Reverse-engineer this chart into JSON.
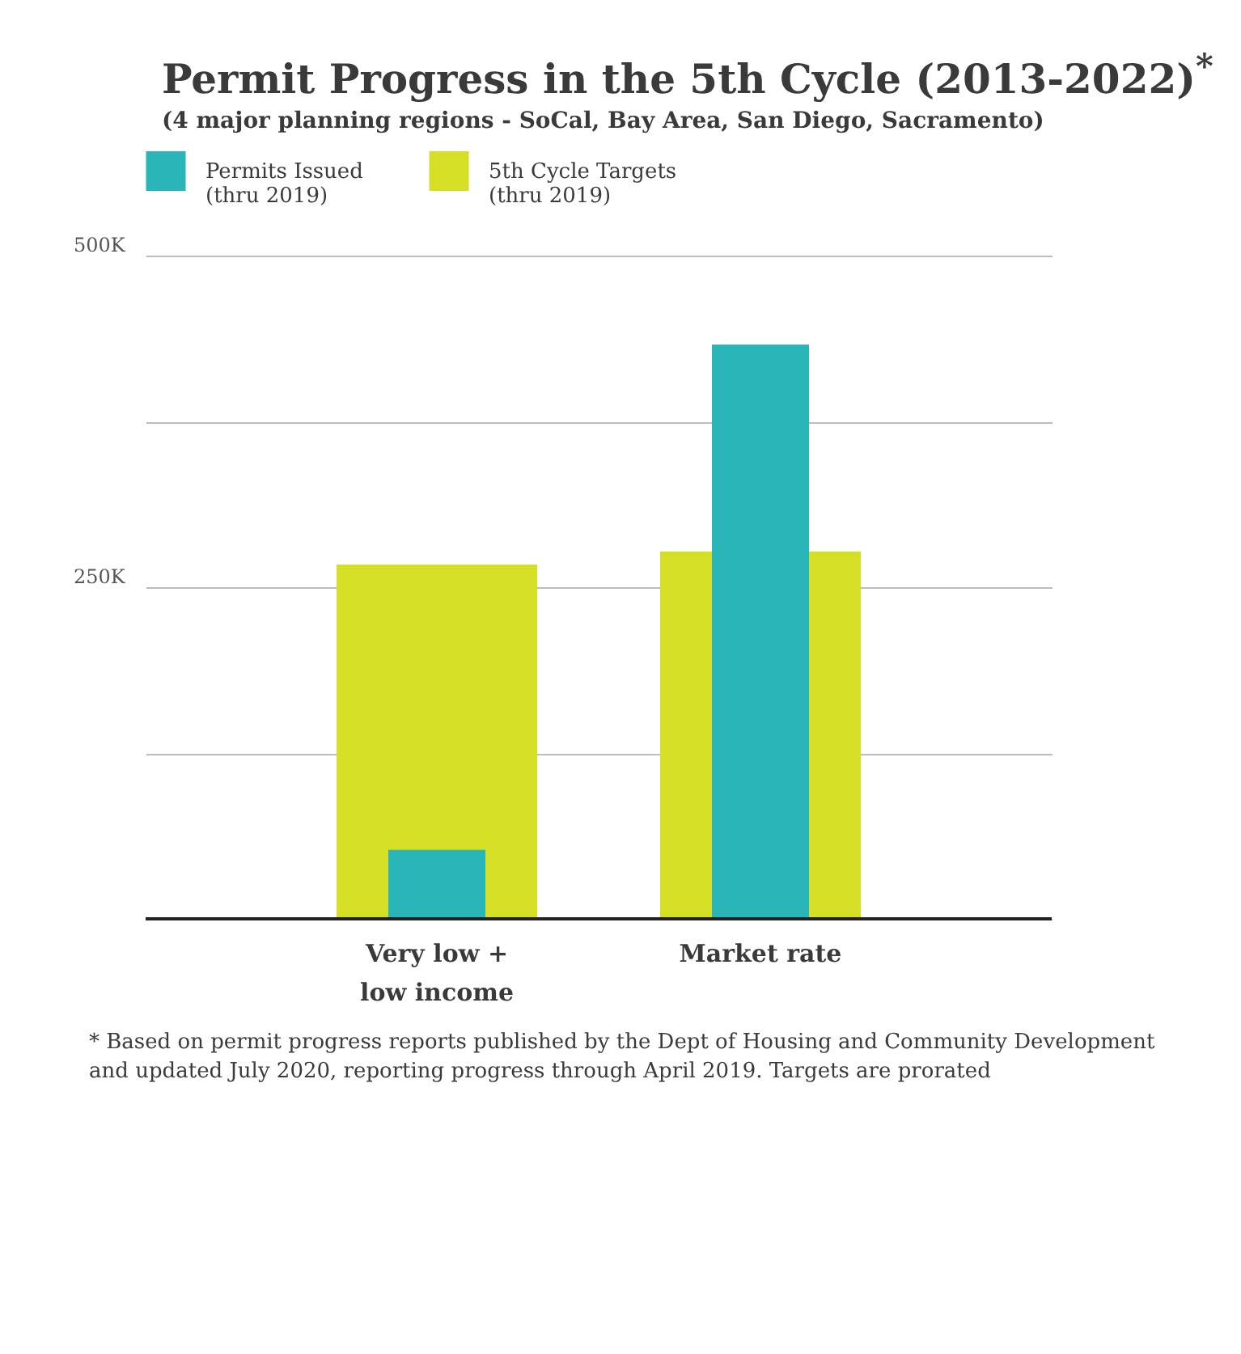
{
  "chart_data": {
    "type": "bar",
    "title": "Permit Progress in the 5th Cycle (2013-2022)$^{*}$",
    "subtitle": "(4 major planning regions - SoCal, Bay Area, San Diego, Sacramento)",
    "categories": [
      "Very low + low income",
      "Market rate"
    ],
    "series": [
      {
        "name": "Permits Issued (thru 2019)",
        "color": "#2ab5b8",
        "values": [
          52000,
          433000
        ]
      },
      {
        "name": "5th Cycle Targets (thru 2019)",
        "color": "#d4df26",
        "values": [
          267000,
          277000
        ]
      }
    ],
    "ylim": [
      0,
      500000
    ],
    "yticks": [
      {
        "value": 0,
        "label": null
      },
      {
        "value": 125000,
        "label": null
      },
      {
        "value": 250000,
        "label": "250K"
      },
      {
        "value": 375000,
        "label": null
      },
      {
        "value": 500000,
        "label": "500K"
      }
    ],
    "grid": true,
    "legend": "top left",
    "annotations": [
      "* Based on permit progress reports published by the Dept of Housing and Community Development and updated July 2020, reporting progress through April 2019. Targets are prorated"
    ]
  }
}
